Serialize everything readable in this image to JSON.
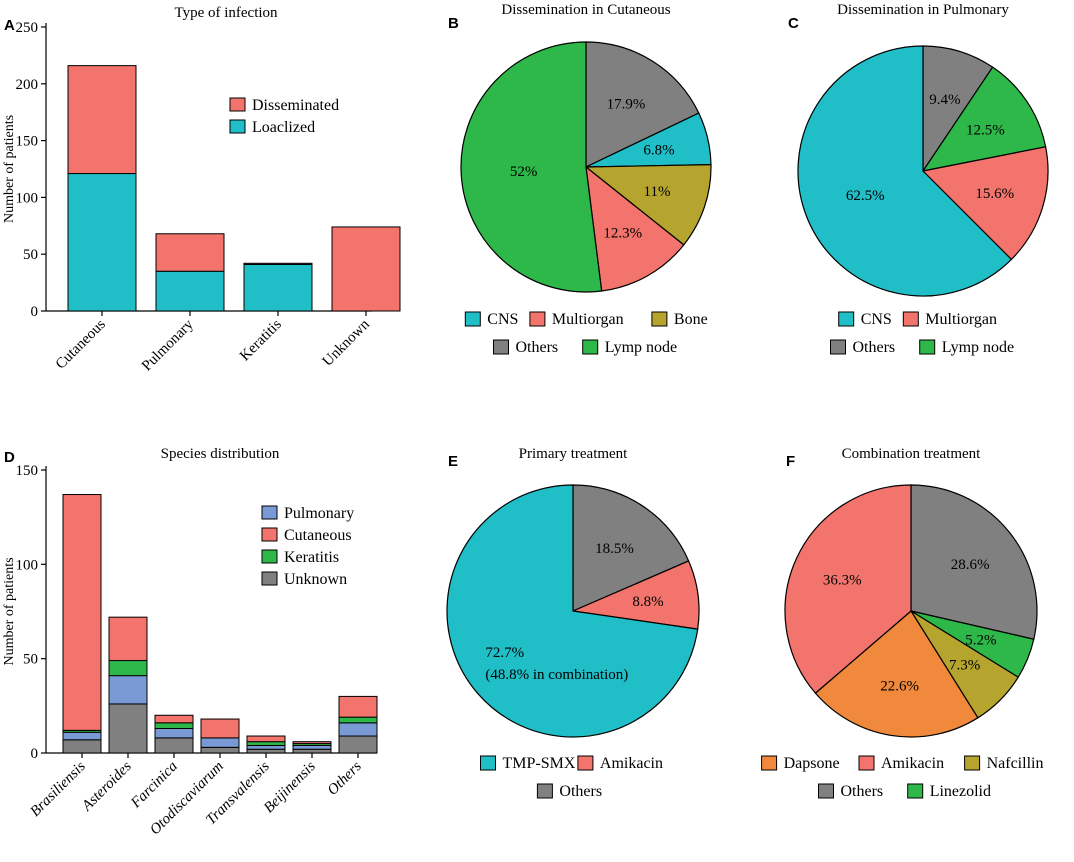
{
  "colors": {
    "teal": "#20BEC6",
    "salmon": "#F2746C",
    "olive": "#B5A52E",
    "gray": "#808080",
    "green": "#2FB84A",
    "blue": "#7A9AD6",
    "orange": "#F0893B"
  },
  "chart_data": [
    {
      "panel": "A",
      "type": "bar",
      "stacked": true,
      "title": "Type of infection",
      "ylabel": "Number of patients",
      "xlabel": "",
      "ylim": [
        0,
        250
      ],
      "yticks": [
        "0",
        "50",
        "100",
        "150",
        "200",
        "250"
      ],
      "categories": [
        "Cutaneous",
        "Pulmonary",
        "Keratitis",
        "Unknown"
      ],
      "series": [
        {
          "name": "Loaclized",
          "color": "#20BEC6",
          "values": [
            121,
            35,
            41,
            0
          ]
        },
        {
          "name": "Disseminated",
          "color": "#F2746C",
          "values": [
            95,
            33,
            1,
            74
          ]
        }
      ],
      "legend": [
        "Disseminated",
        "Loaclized"
      ],
      "legend_position": "top-right"
    },
    {
      "panel": "B",
      "type": "pie",
      "title": "Dissemination in Cutaneous",
      "slices": [
        {
          "name": "Others",
          "value": 17.9,
          "label": "17.9%",
          "color": "#808080"
        },
        {
          "name": "CNS",
          "value": 6.8,
          "label": "6.8%",
          "color": "#20BEC6"
        },
        {
          "name": "Bone",
          "value": 11,
          "label": "11%",
          "color": "#B5A52E"
        },
        {
          "name": "Multiorgan",
          "value": 12.3,
          "label": "12.3%",
          "color": "#F2746C"
        },
        {
          "name": "Lymp node",
          "value": 52,
          "label": "52%",
          "color": "#2FB84A"
        }
      ],
      "legend_rows": [
        [
          "CNS",
          "Multiorgan",
          "Bone"
        ],
        [
          "Others",
          "Lymp node"
        ]
      ]
    },
    {
      "panel": "C",
      "type": "pie",
      "title": "Dissemination in Pulmonary",
      "slices": [
        {
          "name": "Others",
          "value": 9.4,
          "label": "9.4%",
          "color": "#808080"
        },
        {
          "name": "Lymp node",
          "value": 12.5,
          "label": "12.5%",
          "color": "#2FB84A"
        },
        {
          "name": "Multiorgan",
          "value": 15.6,
          "label": "15.6%",
          "color": "#F2746C"
        },
        {
          "name": "CNS",
          "value": 62.5,
          "label": "62.5%",
          "color": "#20BEC6"
        }
      ],
      "legend_rows": [
        [
          "CNS",
          "Multiorgan"
        ],
        [
          "Others",
          "Lymp node"
        ]
      ]
    },
    {
      "panel": "D",
      "type": "bar",
      "stacked": true,
      "title": "Species distribution",
      "ylabel": "Number of patients",
      "xlabel": "",
      "ylim": [
        0,
        150
      ],
      "yticks": [
        "0",
        "50",
        "100",
        "150"
      ],
      "categories": [
        "Brasiliensis",
        "Asteroides",
        "Farcinica",
        "Otodiscaviarum",
        "Transvalensis",
        "Beijinensis",
        "Others"
      ],
      "series": [
        {
          "name": "Unknown",
          "color": "#808080",
          "values": [
            7,
            26,
            8,
            3,
            2,
            2,
            9
          ]
        },
        {
          "name": "Pulmonary",
          "color": "#7A9AD6",
          "values": [
            4,
            15,
            5,
            5,
            2,
            2,
            7
          ]
        },
        {
          "name": "Keratitis",
          "color": "#2FB84A",
          "values": [
            1,
            8,
            3,
            0,
            2,
            1,
            3
          ]
        },
        {
          "name": "Cutaneous",
          "color": "#F2746C",
          "values": [
            125,
            23,
            4,
            10,
            3,
            1,
            11
          ]
        }
      ],
      "legend": [
        "Pulmonary",
        "Cutaneous",
        "Keratitis",
        "Unknown"
      ],
      "legend_position": "top-right"
    },
    {
      "panel": "E",
      "type": "pie",
      "title": "Primary treatment",
      "slices": [
        {
          "name": "Others",
          "value": 18.5,
          "label": "18.5%",
          "color": "#808080"
        },
        {
          "name": "Amikacin",
          "value": 8.8,
          "label": "8.8%",
          "color": "#F2746C"
        },
        {
          "name": "TMP-SMX",
          "value": 72.7,
          "label": "72.7%",
          "sublabel": "(48.8% in combination)",
          "color": "#20BEC6"
        }
      ],
      "legend_rows": [
        [
          "TMP-SMX",
          "Amikacin"
        ],
        [
          "Others"
        ]
      ]
    },
    {
      "panel": "F",
      "type": "pie",
      "title": "Combination treatment",
      "slices": [
        {
          "name": "Others",
          "value": 28.6,
          "label": "28.6%",
          "color": "#808080"
        },
        {
          "name": "Linezolid",
          "value": 5.2,
          "label": "5.2%",
          "color": "#2FB84A"
        },
        {
          "name": "Nafcillin",
          "value": 7.3,
          "label": "7.3%",
          "color": "#B5A52E"
        },
        {
          "name": "Dapsone",
          "value": 22.6,
          "label": "22.6%",
          "color": "#F0893B"
        },
        {
          "name": "Amikacin",
          "value": 36.3,
          "label": "36.3%",
          "color": "#F2746C"
        }
      ],
      "legend_rows": [
        [
          "Dapsone",
          "Amikacin",
          "Nafcillin"
        ],
        [
          "Others",
          "Linezolid"
        ]
      ]
    }
  ]
}
